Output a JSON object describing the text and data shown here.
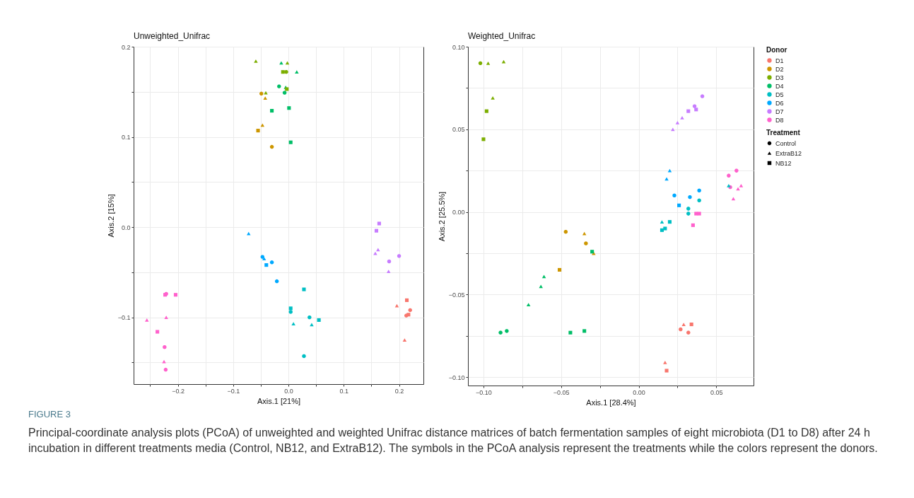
{
  "chart_data": [
    {
      "type": "scatter",
      "title": "Unweighted_Unifrac",
      "xlabel": "Axis.1   [21%]",
      "ylabel": "Axis.2   [15%]",
      "xlim": [
        -0.28,
        0.244
      ],
      "ylim": [
        -0.174,
        0.2
      ],
      "xticks": [
        {
          "value": -0.25,
          "label": null
        },
        {
          "value": -0.2,
          "label": "−0.2"
        },
        {
          "value": -0.15,
          "label": null
        },
        {
          "value": -0.1,
          "label": "−0.1"
        },
        {
          "value": -0.05,
          "label": null
        },
        {
          "value": 0,
          "label": "0.0"
        },
        {
          "value": 0.05,
          "label": null
        },
        0.1,
        {
          "value": 0.15,
          "label": null
        },
        0.2
      ],
      "yticks": [
        {
          "value": -0.15,
          "label": null
        },
        {
          "value": -0.1,
          "label": "−0.1"
        },
        {
          "value": -0.05,
          "label": null
        },
        {
          "value": 0,
          "label": "0.0"
        },
        {
          "value": 0.05,
          "label": null
        },
        0.1,
        {
          "value": 0.15,
          "label": null
        },
        0.2
      ],
      "grid": true,
      "legend": false,
      "annotations": [
        "FIGURE 3",
        "Principal-coordinate analysis plots (PCoA) of unweighted and weighted Unifrac distance matrices of batch fermentation samples of eight microbiota (D1 to D8) after 24 h incubation in different treatments media (Control, NB12, and ExtraB12). The symbols in the PCoA analysis represent the treatments while the colors represent the donors."
      ],
      "series": [
        {
          "color": "#f8766d",
          "marker": "circle",
          "x": [
            0.22,
            0.213
          ],
          "values": [
            -0.092,
            -0.098
          ]
        },
        {
          "color": "#f8766d",
          "marker": "triangle",
          "x": [
            0.196,
            0.21
          ],
          "values": [
            -0.087,
            -0.125
          ]
        },
        {
          "color": "#f8766d",
          "marker": "square",
          "x": [
            0.214,
            0.217
          ],
          "values": [
            -0.081,
            -0.097
          ]
        },
        {
          "color": "#cd9600",
          "marker": "circle",
          "x": [
            -0.049,
            -0.03
          ],
          "values": [
            0.148,
            0.089
          ]
        },
        {
          "color": "#cd9600",
          "marker": "triangle",
          "x": [
            -0.042,
            -0.047
          ],
          "values": [
            0.143,
            0.113
          ]
        },
        {
          "color": "#cd9600",
          "marker": "square",
          "x": [
            -0.055
          ],
          "values": [
            0.107
          ]
        },
        {
          "color": "#7cae00",
          "marker": "circle",
          "x": [
            -0.004
          ],
          "values": [
            0.172
          ]
        },
        {
          "color": "#7cae00",
          "marker": "triangle",
          "x": [
            -0.059,
            -0.002,
            -0.041
          ],
          "values": [
            0.184,
            0.182,
            0.149
          ]
        },
        {
          "color": "#7cae00",
          "marker": "square",
          "x": [
            -0.01,
            -0.003
          ],
          "values": [
            0.172,
            0.153
          ]
        },
        {
          "color": "#00be67",
          "marker": "circle",
          "x": [
            -0.017,
            -0.007
          ],
          "values": [
            0.156,
            0.149
          ]
        },
        {
          "color": "#00be67",
          "marker": "triangle",
          "x": [
            -0.013,
            0.015,
            -0.005
          ],
          "values": [
            0.182,
            0.172,
            0.155
          ]
        },
        {
          "color": "#00be67",
          "marker": "square",
          "x": [
            -0.03,
            0.001,
            0.004
          ],
          "values": [
            0.129,
            0.132,
            0.094
          ]
        },
        {
          "color": "#00bfc4",
          "marker": "circle",
          "x": [
            0.004,
            0.038,
            0.028
          ],
          "values": [
            -0.094,
            -0.1,
            -0.143
          ]
        },
        {
          "color": "#00bfc4",
          "marker": "triangle",
          "x": [
            0.009,
            0.042
          ],
          "values": [
            -0.107,
            -0.108
          ]
        },
        {
          "color": "#00bfc4",
          "marker": "square",
          "x": [
            0.028,
            0.004,
            0.055
          ],
          "values": [
            -0.069,
            -0.09,
            -0.103
          ]
        },
        {
          "color": "#00a9ff",
          "marker": "circle",
          "x": [
            -0.047,
            -0.03,
            -0.021
          ],
          "values": [
            -0.033,
            -0.039,
            -0.06
          ]
        },
        {
          "color": "#00a9ff",
          "marker": "triangle",
          "x": [
            -0.072,
            -0.044
          ],
          "values": [
            -0.007,
            -0.035
          ]
        },
        {
          "color": "#00a9ff",
          "marker": "square",
          "x": [
            -0.04
          ],
          "values": [
            -0.042
          ]
        },
        {
          "color": "#c77cff",
          "marker": "circle",
          "x": [
            0.2,
            0.182
          ],
          "values": [
            -0.032,
            -0.038
          ]
        },
        {
          "color": "#c77cff",
          "marker": "triangle",
          "x": [
            0.162,
            0.157,
            0.181
          ],
          "values": [
            -0.025,
            -0.029,
            -0.049
          ]
        },
        {
          "color": "#c77cff",
          "marker": "square",
          "x": [
            0.164,
            0.159
          ],
          "values": [
            0.004,
            -0.004
          ]
        },
        {
          "color": "#ff61cc",
          "marker": "circle",
          "x": [
            -0.221,
            -0.224,
            -0.222
          ],
          "values": [
            -0.074,
            -0.133,
            -0.158
          ]
        },
        {
          "color": "#ff61cc",
          "marker": "triangle",
          "x": [
            -0.256,
            -0.221,
            -0.225
          ],
          "values": [
            -0.103,
            -0.1,
            -0.149
          ]
        },
        {
          "color": "#ff61cc",
          "marker": "square",
          "x": [
            -0.223,
            -0.204,
            -0.237
          ],
          "values": [
            -0.075,
            -0.075,
            -0.116
          ]
        }
      ]
    },
    {
      "type": "scatter",
      "title": "Weighted_Unifrac",
      "xlabel": "Axis.1   [28.4%]",
      "ylabel": "Axis.2   [25.5%]",
      "xlim": [
        -0.11,
        0.074
      ],
      "ylim": [
        -0.105,
        0.1
      ],
      "xticks": [
        {
          "value": -0.1,
          "label": "−0.10"
        },
        {
          "value": -0.075,
          "label": null
        },
        {
          "value": -0.05,
          "label": "−0.05"
        },
        {
          "value": -0.025,
          "label": null
        },
        {
          "value": 0,
          "label": "0.00"
        },
        {
          "value": 0.025,
          "label": null
        },
        0.05
      ],
      "yticks": [
        {
          "value": -0.1,
          "label": "−0.10"
        },
        {
          "value": -0.075,
          "label": null
        },
        {
          "value": -0.05,
          "label": "−0.05"
        },
        {
          "value": -0.025,
          "label": null
        },
        {
          "value": 0,
          "label": "0.00"
        },
        {
          "value": 0.025,
          "label": null
        },
        0.05,
        {
          "value": 0.075,
          "label": null
        },
        {
          "value": 0.1,
          "label": "0.10"
        }
      ],
      "grid": true,
      "legend": "right",
      "legend_title": [
        "Donor",
        "Treatment"
      ],
      "series": [
        {
          "name": "D1",
          "color": "#f8766d",
          "marker": "circle",
          "x": [
            0.027,
            0.032
          ],
          "values": [
            -0.071,
            -0.073
          ]
        },
        {
          "color": "#f8766d",
          "marker": "triangle",
          "x": [
            0.029,
            0.017
          ],
          "values": [
            -0.068,
            -0.091
          ]
        },
        {
          "color": "#f8766d",
          "marker": "square",
          "x": [
            0.034,
            0.018
          ],
          "values": [
            -0.068,
            -0.096
          ]
        },
        {
          "name": "D2",
          "color": "#cd9600",
          "marker": "circle",
          "x": [
            -0.047,
            -0.034
          ],
          "values": [
            -0.012,
            -0.019
          ]
        },
        {
          "color": "#cd9600",
          "marker": "triangle",
          "x": [
            -0.035,
            -0.029
          ],
          "values": [
            -0.013,
            -0.025
          ]
        },
        {
          "color": "#cd9600",
          "marker": "square",
          "x": [
            -0.051
          ],
          "values": [
            -0.035
          ]
        },
        {
          "name": "D3",
          "color": "#7cae00",
          "marker": "circle",
          "x": [
            -0.102
          ],
          "values": [
            0.09
          ]
        },
        {
          "color": "#7cae00",
          "marker": "triangle",
          "x": [
            -0.097,
            -0.087,
            -0.094
          ],
          "values": [
            0.09,
            0.091,
            0.069
          ]
        },
        {
          "color": "#7cae00",
          "marker": "square",
          "x": [
            -0.098,
            -0.1
          ],
          "values": [
            0.061,
            0.044
          ]
        },
        {
          "name": "D4",
          "color": "#00be67",
          "marker": "circle",
          "x": [
            -0.089,
            -0.085
          ],
          "values": [
            -0.073,
            -0.072
          ]
        },
        {
          "color": "#00be67",
          "marker": "triangle",
          "x": [
            -0.061,
            -0.063,
            -0.071
          ],
          "values": [
            -0.039,
            -0.045,
            -0.056
          ]
        },
        {
          "color": "#00be67",
          "marker": "square",
          "x": [
            -0.03,
            -0.044,
            -0.035
          ],
          "values": [
            -0.024,
            -0.073,
            -0.072
          ]
        },
        {
          "name": "D5",
          "color": "#00bfc4",
          "marker": "circle",
          "x": [
            0.039,
            0.032,
            0.032
          ],
          "values": [
            0.007,
            0.002,
            -0.001
          ]
        },
        {
          "color": "#00bfc4",
          "marker": "triangle",
          "x": [
            0.058,
            0.015
          ],
          "values": [
            0.016,
            -0.006
          ]
        },
        {
          "color": "#00bfc4",
          "marker": "square",
          "x": [
            0.02,
            0.017,
            0.015
          ],
          "values": [
            -0.006,
            -0.01,
            -0.011
          ]
        },
        {
          "name": "D6",
          "color": "#00a9ff",
          "marker": "circle",
          "x": [
            0.023,
            0.033,
            0.039
          ],
          "values": [
            0.01,
            0.009,
            0.013
          ]
        },
        {
          "color": "#00a9ff",
          "marker": "triangle",
          "x": [
            0.02,
            0.018
          ],
          "values": [
            0.025,
            0.02
          ]
        },
        {
          "color": "#00a9ff",
          "marker": "square",
          "x": [
            0.026
          ],
          "values": [
            0.004
          ]
        },
        {
          "name": "D7",
          "color": "#c77cff",
          "marker": "circle",
          "x": [
            0.041,
            0.036
          ],
          "values": [
            0.07,
            0.064
          ]
        },
        {
          "color": "#c77cff",
          "marker": "triangle",
          "x": [
            0.028,
            0.025,
            0.022
          ],
          "values": [
            0.057,
            0.054,
            0.05
          ]
        },
        {
          "color": "#c77cff",
          "marker": "square",
          "x": [
            0.037,
            0.032
          ],
          "values": [
            0.062,
            0.061
          ]
        },
        {
          "name": "D8",
          "color": "#ff61cc",
          "marker": "circle",
          "x": [
            0.058,
            0.063,
            0.059
          ],
          "values": [
            0.022,
            0.025,
            0.015
          ]
        },
        {
          "color": "#ff61cc",
          "marker": "triangle",
          "x": [
            0.066,
            0.064,
            0.061
          ],
          "values": [
            0.016,
            0.014,
            0.008
          ]
        },
        {
          "color": "#ff61cc",
          "marker": "square",
          "x": [
            0.037,
            0.039,
            0.035
          ],
          "values": [
            -0.001,
            -0.001,
            -0.008
          ]
        },
        {
          "name": "Control",
          "color": "#000000",
          "marker": "circle"
        },
        {
          "name": "ExtraB12",
          "color": "#000000",
          "marker": "triangle"
        },
        {
          "name": "NB12",
          "color": "#000000",
          "marker": "square"
        }
      ]
    }
  ]
}
